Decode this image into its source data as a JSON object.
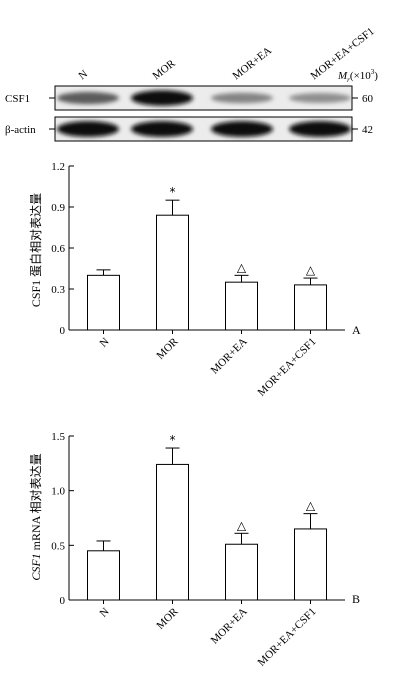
{
  "blot": {
    "lanes": [
      "N",
      "MOR",
      "MOR+EA",
      "MOR+EA+CSF1"
    ],
    "mr_label": "Mr(×10",
    "mr_italic": "M",
    "mr_sub": "r",
    "mr_prefix": "(×10",
    "mr_exp": "3",
    "mr_suffix": ")",
    "rows": [
      {
        "label": "CSF1",
        "mw": "60",
        "intensity": [
          0.62,
          0.95,
          0.45,
          0.4
        ]
      },
      {
        "label": "β-actin",
        "mw": "42",
        "intensity": [
          0.98,
          0.98,
          0.98,
          0.98
        ]
      }
    ]
  },
  "chart_data": [
    {
      "type": "bar",
      "panel": "A",
      "categories": [
        "N",
        "MOR",
        "MOR+EA",
        "MOR+EA+CSF1"
      ],
      "values": [
        0.4,
        0.84,
        0.35,
        0.33
      ],
      "errors": [
        0.04,
        0.11,
        0.05,
        0.05
      ],
      "markers": [
        "",
        "*",
        "△",
        "△"
      ],
      "ylabel": "CSF1 蛋白相对表达量",
      "ylim": [
        0,
        1.2
      ],
      "yticks": [
        "0",
        "0.3",
        "0.6",
        "0.9",
        "1.2"
      ],
      "grid": false
    },
    {
      "type": "bar",
      "panel": "B",
      "categories": [
        "N",
        "MOR",
        "MOR+EA",
        "MOR+EA+CSF1"
      ],
      "values": [
        0.45,
        1.24,
        0.51,
        0.65
      ],
      "errors": [
        0.09,
        0.15,
        0.1,
        0.14
      ],
      "markers": [
        "",
        "*",
        "△",
        "△"
      ],
      "ylabel_italic": "CSF1",
      "ylabel_rest": " mRNA 相对表达量",
      "ylim": [
        0,
        1.5
      ],
      "yticks": [
        "0",
        "0.5",
        "1.0",
        "1.5"
      ],
      "grid": false
    }
  ]
}
